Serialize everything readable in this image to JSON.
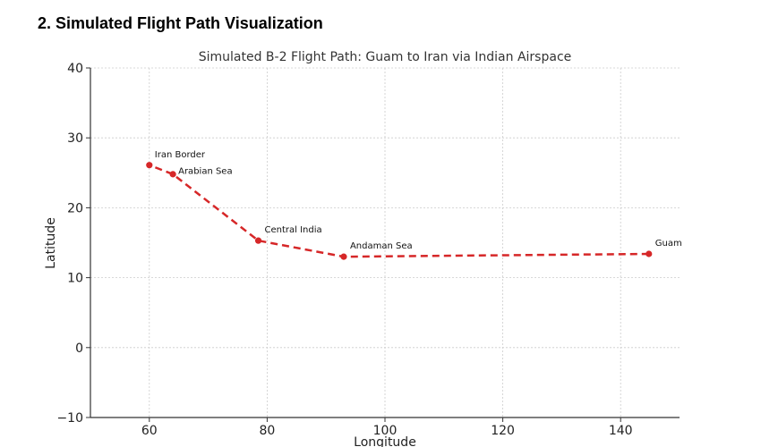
{
  "page": {
    "heading": "2. Simulated Flight Path Visualization"
  },
  "colors": {
    "path": "#d62728",
    "grid": "#cccccc",
    "axis": "#333333"
  },
  "chart_data": {
    "type": "line",
    "title": "Simulated B-2 Flight Path: Guam to Iran via Indian Airspace",
    "xlabel": "Longitude",
    "ylabel": "Latitude",
    "xlim": [
      50,
      150
    ],
    "ylim": [
      -10,
      40
    ],
    "xticks": [
      60,
      80,
      100,
      120,
      140
    ],
    "yticks": [
      -10,
      0,
      10,
      20,
      30,
      40
    ],
    "grid": true,
    "line_style": "dashed",
    "marker": "circle",
    "points": [
      {
        "label": "Guam",
        "x": 144.8,
        "y": 13.4
      },
      {
        "label": "Andaman Sea",
        "x": 93.0,
        "y": 13.0
      },
      {
        "label": "Central India",
        "x": 78.5,
        "y": 15.3
      },
      {
        "label": "Arabian Sea",
        "x": 64.0,
        "y": 24.8
      },
      {
        "label": "Iran Border",
        "x": 60.0,
        "y": 26.1
      }
    ]
  }
}
